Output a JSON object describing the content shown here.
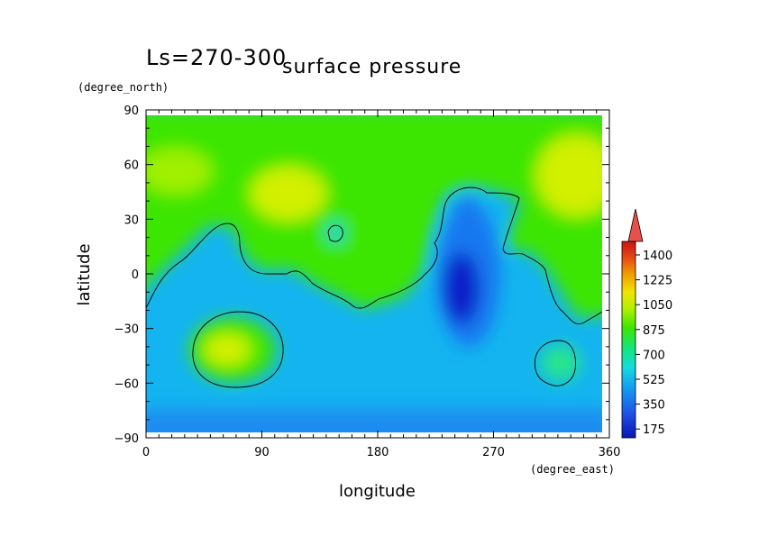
{
  "chart_data": {
    "type": "heatmap",
    "season_label": "Ls=270-300",
    "title": "surface pressure",
    "xlabel": "longitude",
    "ylabel": "latitude",
    "x_unit": "(degree_east)",
    "y_unit": "(degree_north)",
    "xlim": [
      0,
      360
    ],
    "ylim": [
      -90,
      90
    ],
    "x_ticks": [
      "0",
      "90",
      "180",
      "270",
      "360"
    ],
    "y_ticks": [
      "90",
      "60",
      "30",
      "0",
      "−30",
      "−60",
      "−90"
    ],
    "colorbar": {
      "labels": [
        "1400",
        "1225",
        "1050",
        "875",
        "700",
        "525",
        "350",
        "175"
      ],
      "range": [
        175,
        1500
      ],
      "extend": "max"
    },
    "colors": {
      "low": "#0a1ec8",
      "mid_low": "#14b4f0",
      "mid": "#3ce600",
      "mid_high": "#d2f000",
      "high": "#e61414"
    }
  }
}
